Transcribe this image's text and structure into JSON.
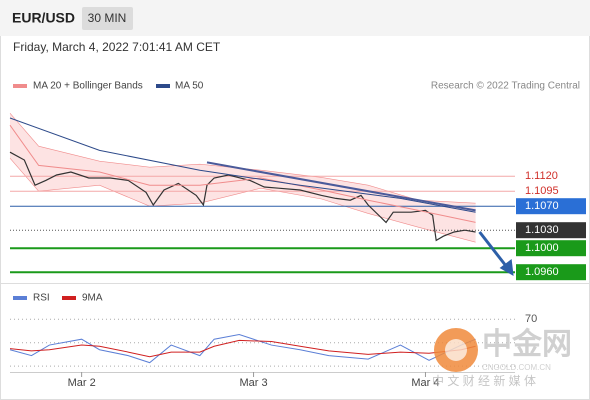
{
  "header": {
    "symbol": "EUR/USD",
    "interval": "30 MIN",
    "date": "Friday, March 4, 2022 7:01:41 AM CET"
  },
  "watermark": {
    "name": "中金网",
    "site": "CNGOLD.COM.CN",
    "tagline": "中 文 财 经 新 媒 体"
  },
  "chart_data": [
    {
      "type": "line",
      "credit": "Research © 2022 Trading Central",
      "xlim": [
        0,
        141
      ],
      "ylim": [
        1.0942,
        1.1247
      ],
      "price": {
        "color": "#333333",
        "x": [
          0,
          4,
          7,
          10,
          13,
          17,
          22,
          28,
          33,
          38,
          40,
          43,
          47,
          52,
          54,
          55,
          57,
          61,
          67,
          71,
          75,
          81,
          87,
          91,
          95,
          98,
          100,
          105,
          107,
          112,
          116,
          118,
          119,
          121,
          124,
          127,
          130
        ],
        "values": [
          1.116,
          1.1147,
          1.1105,
          1.1113,
          1.1122,
          1.1127,
          1.1117,
          1.1117,
          1.1113,
          1.1093,
          1.1072,
          1.1097,
          1.1108,
          1.1088,
          1.1072,
          1.1105,
          1.1117,
          1.1122,
          1.1113,
          1.1102,
          1.11,
          1.1097,
          1.1088,
          1.1083,
          1.108,
          1.1088,
          1.1072,
          1.1043,
          1.106,
          1.106,
          1.1063,
          1.1055,
          1.1013,
          1.102,
          1.1027,
          1.103,
          1.1027
        ]
      },
      "series": [
        {
          "name": "MA 20 + Bollinger Bands",
          "color": "#f08c8c",
          "band_color": "#fde3e3",
          "x": [
            0,
            8,
            25,
            39,
            53,
            70,
            87,
            100,
            114,
            130
          ],
          "values": [
            1.1205,
            1.1138,
            1.1127,
            1.1105,
            1.1105,
            1.1117,
            1.1097,
            1.108,
            1.1063,
            1.1043
          ],
          "upper": [
            1.1225,
            1.117,
            1.1145,
            1.1135,
            1.114,
            1.113,
            1.1118,
            1.1105,
            1.108,
            1.1075
          ],
          "lower": [
            1.115,
            1.1095,
            1.1105,
            1.107,
            1.1075,
            1.11,
            1.1082,
            1.1058,
            1.1035,
            1.101
          ]
        },
        {
          "name": "MA 50",
          "color": "#2d4a8a",
          "x": [
            0,
            25,
            53,
            81,
            109,
            130
          ],
          "values": [
            1.1217,
            1.1163,
            1.113,
            1.1105,
            1.1083,
            1.106
          ]
        }
      ],
      "trendline": {
        "color": "#4a5a9a",
        "x": [
          55,
          130
        ],
        "values": [
          1.1143,
          1.1063
        ]
      },
      "levels": [
        {
          "value": 1.112,
          "label": "1.1120",
          "line_color": "#f4a8a8",
          "label_color": "#d0302a",
          "box": null
        },
        {
          "value": 1.1095,
          "label": "1.1095",
          "line_color": "#f4a8a8",
          "label_color": "#d0302a",
          "box": null
        },
        {
          "value": 1.107,
          "label": "1.1070",
          "line_color": "#2d5fa8",
          "label_color": "#ffffff",
          "box": "#2a6fd6"
        },
        {
          "value": 1.103,
          "label": "1.1030",
          "line_color": "#555555",
          "label_color": "#ffffff",
          "box": "#333333",
          "dotted": true
        },
        {
          "value": 1.1,
          "label": "1.1000",
          "line_color": "#1a9a1a",
          "label_color": "#ffffff",
          "box": "#1a9a1a"
        },
        {
          "value": 1.096,
          "label": "1.0960",
          "line_color": "#1a9a1a",
          "label_color": "#ffffff",
          "box": "#1a9a1a"
        }
      ]
    },
    {
      "type": "line",
      "xlim": [
        0,
        141
      ],
      "ylim": [
        25,
        95
      ],
      "yticks": [
        70
      ],
      "guides": [
        50,
        30
      ],
      "xticks": [
        {
          "value": 20,
          "label": "Mar 2"
        },
        {
          "value": 68,
          "label": "Mar 3"
        },
        {
          "value": 116,
          "label": "Mar 4"
        }
      ],
      "x": [
        0,
        6,
        11,
        20,
        25,
        33,
        39,
        45,
        53,
        57,
        64,
        73,
        81,
        89,
        100,
        109,
        117,
        126,
        130
      ],
      "series": [
        {
          "name": "RSI",
          "color": "#5b7fd6",
          "values": [
            44,
            39,
            48,
            53,
            44,
            39,
            33,
            48,
            39,
            53,
            57,
            48,
            44,
            39,
            36,
            48,
            35,
            48,
            53
          ]
        },
        {
          "name": "9MA",
          "color": "#d02020",
          "values": [
            45,
            43,
            44,
            48,
            47,
            42,
            38,
            42,
            42,
            47,
            52,
            51,
            47,
            43,
            40,
            42,
            41,
            44,
            47
          ]
        }
      ]
    }
  ]
}
